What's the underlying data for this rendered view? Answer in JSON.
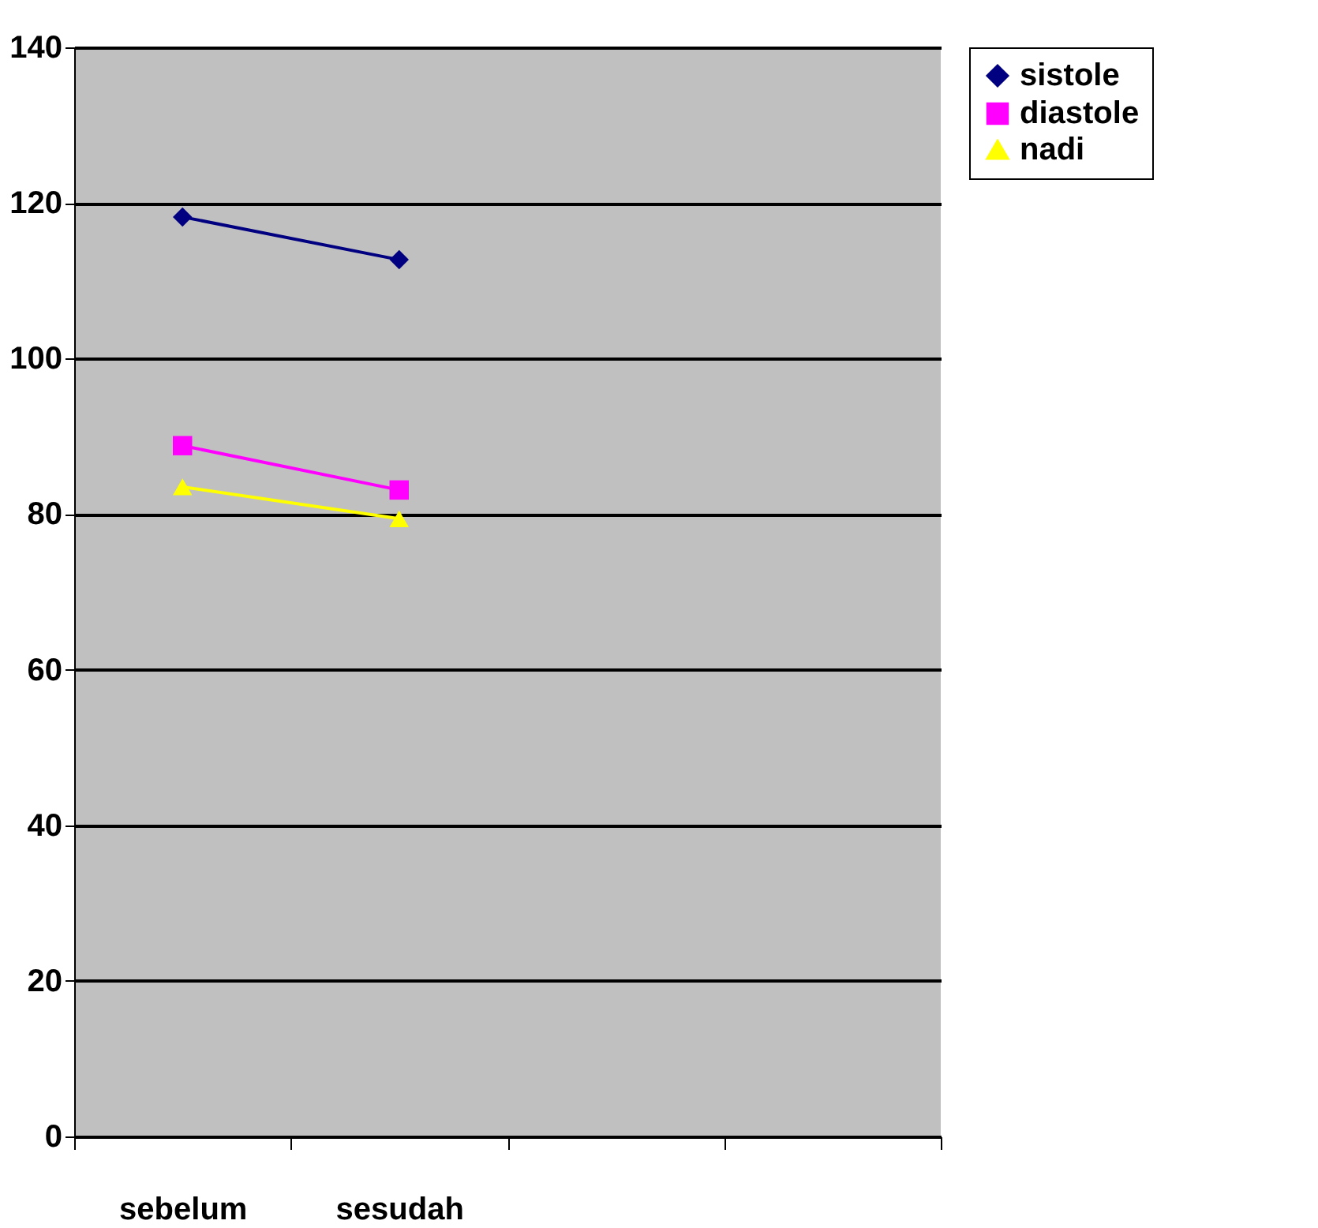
{
  "chart_data": {
    "type": "line",
    "categories": [
      "sebelum",
      "sesudah",
      null,
      null
    ],
    "series": [
      {
        "name": "sistole",
        "color": "#000080",
        "marker": "diamond",
        "values": [
          118.2,
          112.7,
          null,
          null
        ]
      },
      {
        "name": "diastole",
        "color": "#ff00ff",
        "marker": "square",
        "values": [
          88.8,
          83.1,
          null,
          null
        ]
      },
      {
        "name": "nadi",
        "color": "#ffff00",
        "marker": "triangle",
        "values": [
          83.5,
          79.4,
          null,
          null
        ]
      }
    ],
    "ylim": [
      0,
      140
    ],
    "yticks": [
      0,
      20,
      40,
      60,
      80,
      100,
      120,
      140
    ],
    "grid": "y",
    "legend": "right",
    "line_style": "solid"
  }
}
